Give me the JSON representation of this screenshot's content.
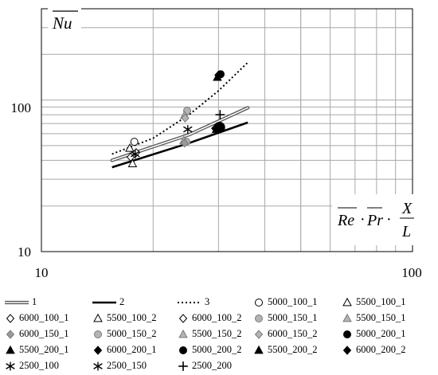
{
  "chart_data": {
    "type": "line",
    "x_scale": "log",
    "y_scale": "log",
    "xlim": [
      10,
      100
    ],
    "ylim": [
      10,
      400
    ],
    "grid": "log-major-minor",
    "x_ticks": [
      {
        "value": 10,
        "label": "10"
      },
      {
        "value": 100,
        "label": "100"
      }
    ],
    "y_ticks": [
      {
        "value": 10,
        "label": "10"
      },
      {
        "value": 100,
        "label": "100"
      }
    ],
    "y_axis_title": "Nu",
    "x_axis_title": {
      "re": "Re",
      "dot1": "·",
      "pr": "Pr",
      "dot2": "·",
      "num": "X",
      "den": "L"
    },
    "lines": [
      {
        "name": "1",
        "style": "double",
        "color": "#777777",
        "x": [
          15.5,
          25,
          36
        ],
        "y": [
          40,
          59,
          89
        ]
      },
      {
        "name": "2",
        "style": "solid",
        "color": "#000000",
        "x": [
          15.5,
          25,
          36
        ],
        "y": [
          36,
          52,
          71
        ]
      },
      {
        "name": "3",
        "style": "dotted",
        "color": "#000000",
        "x": [
          15.5,
          20,
          25,
          30,
          36
        ],
        "y": [
          44,
          56,
          80,
          115,
          177
        ]
      }
    ],
    "markers": [
      {
        "name": "5000_100_1",
        "shape": "circle",
        "fill": "#ffffff",
        "x": 17.8,
        "y": 53
      },
      {
        "name": "5500_100_1",
        "shape": "triangle",
        "fill": "#ffffff",
        "x": 17.6,
        "y": 38
      },
      {
        "name": "6000_100_1",
        "shape": "diamond",
        "fill": "#ffffff",
        "x": 17.4,
        "y": 42
      },
      {
        "name": "5500_100_2",
        "shape": "triangle",
        "fill": "#ffffff",
        "x": 17.3,
        "y": 48
      },
      {
        "name": "6000_100_2",
        "shape": "diamond",
        "fill": "#ffffff",
        "x": 18.0,
        "y": 45
      },
      {
        "name": "5000_150_1",
        "shape": "circle",
        "fill": "#b4b4b4",
        "x": 24.6,
        "y": 53
      },
      {
        "name": "5500_150_1",
        "shape": "triangle",
        "fill": "#b4b4b4",
        "x": 24.2,
        "y": 54
      },
      {
        "name": "6000_150_1",
        "shape": "diamond",
        "fill": "#9a9a9a",
        "x": 24.3,
        "y": 52
      },
      {
        "name": "5000_150_2",
        "shape": "circle",
        "fill": "#b4b4b4",
        "x": 24.7,
        "y": 85
      },
      {
        "name": "5500_150_2",
        "shape": "triangle",
        "fill": "#b4b4b4",
        "x": 24.3,
        "y": 79
      },
      {
        "name": "6000_150_2",
        "shape": "diamond",
        "fill": "#b4b4b4",
        "x": 24.4,
        "y": 76
      },
      {
        "name": "5000_200_1",
        "shape": "circle",
        "fill": "#000000",
        "x": 30.2,
        "y": 66
      },
      {
        "name": "5500_200_1",
        "shape": "triangle",
        "fill": "#000000",
        "x": 29.6,
        "y": 64
      },
      {
        "name": "6000_200_1",
        "shape": "diamond",
        "fill": "#000000",
        "x": 29.4,
        "y": 65
      },
      {
        "name": "5000_200_2",
        "shape": "circle",
        "fill": "#000000",
        "x": 30.4,
        "y": 148
      },
      {
        "name": "5500_200_2",
        "shape": "triangle",
        "fill": "#000000",
        "x": 29.8,
        "y": 141
      },
      {
        "name": "6000_200_2",
        "shape": "diamond",
        "fill": "#000000",
        "x": 30.0,
        "y": 146
      },
      {
        "name": "2500_100",
        "shape": "asterisk",
        "fill": "#000000",
        "x": 17.9,
        "y": 44
      },
      {
        "name": "2500_150",
        "shape": "asterisk",
        "fill": "#000000",
        "x": 24.8,
        "y": 64
      },
      {
        "name": "2500_200",
        "shape": "plus",
        "fill": "#000000",
        "x": 30.3,
        "y": 80
      }
    ],
    "legend_order": [
      "1",
      "2",
      "3",
      "5000_100_1",
      "5500_100_1",
      "6000_100_1",
      "5500_100_2",
      "6000_100_2",
      "5000_150_1",
      "5500_150_1",
      "6000_150_1",
      "5000_150_2",
      "5500_150_2",
      "6000_150_2",
      "5000_200_1",
      "5500_200_1",
      "6000_200_1",
      "5000_200_2",
      "5500_200_2",
      "6000_200_2",
      "2500_100",
      "2500_150",
      "2500_200"
    ],
    "legend_placement": "bottom"
  }
}
